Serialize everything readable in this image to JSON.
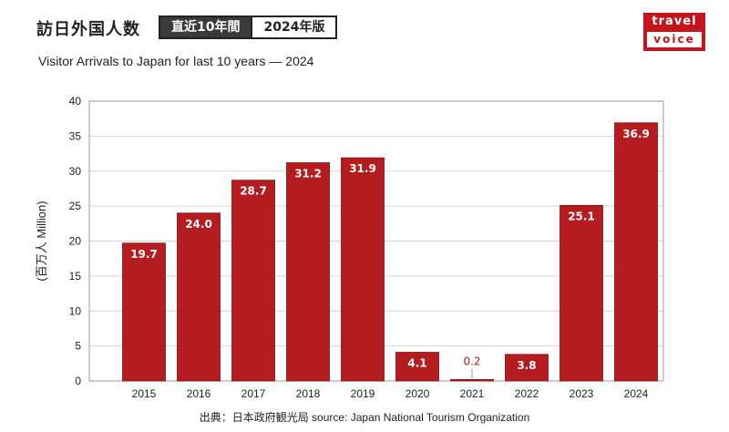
{
  "header": {
    "title": "訪日外国人数",
    "tag_period": "直近10年間",
    "tag_edition": "2024年版",
    "subtitle": "Visitor Arrivals to Japan for last 10 years ― 2024"
  },
  "logo": {
    "line1": "travel",
    "line2": "voice",
    "color": "#c4151c"
  },
  "source": "出典：日本政府観光局  source: Japan National Tourism Organization",
  "chart_data": {
    "type": "bar",
    "title": "Visitor Arrivals to Japan for last 10 years ― 2024",
    "ylabel": "(百万人 Million)",
    "xlabel": "",
    "categories": [
      "2015",
      "2016",
      "2017",
      "2018",
      "2019",
      "2020",
      "2021",
      "2022",
      "2023",
      "2024"
    ],
    "values": [
      19.7,
      24.0,
      28.7,
      31.2,
      31.9,
      4.1,
      0.2,
      3.8,
      25.1,
      36.9
    ],
    "value_labels": [
      "19.7",
      "24.0",
      "28.7",
      "31.2",
      "31.9",
      "4.1",
      "0.2",
      "3.8",
      "25.1",
      "36.9"
    ],
    "ylim": [
      0,
      40
    ],
    "yticks": [
      0,
      5,
      10,
      15,
      20,
      25,
      30,
      35,
      40
    ],
    "grid": true,
    "bar_color": "#b51c1f",
    "legend": "none"
  }
}
